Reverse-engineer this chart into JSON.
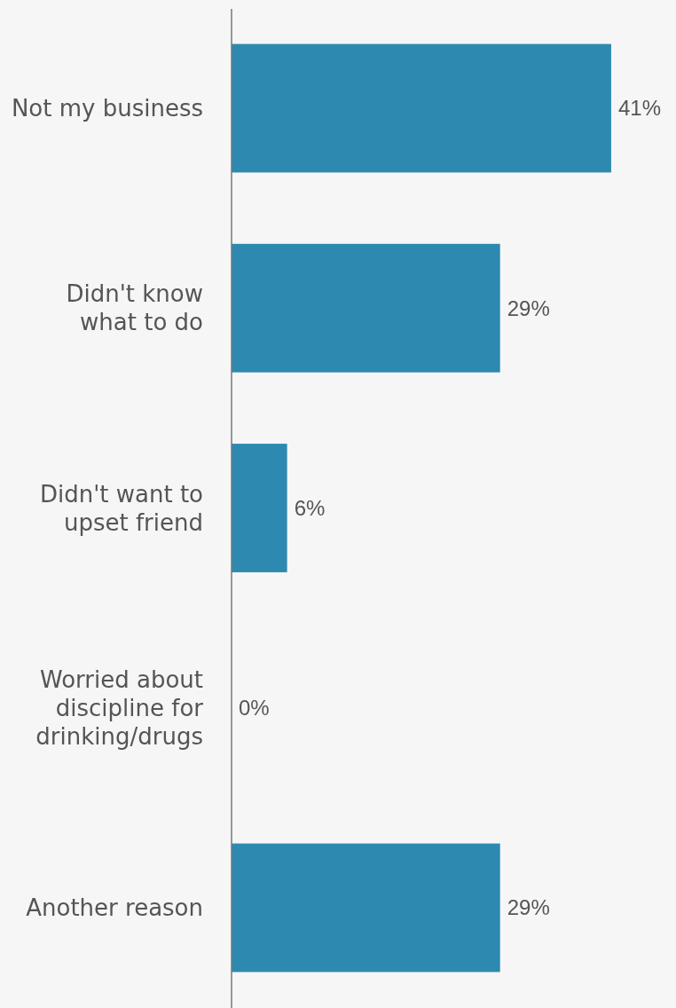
{
  "chart_data": {
    "type": "bar",
    "orientation": "horizontal",
    "categories": [
      "Not my business",
      "Didn't know\nwhat to do",
      "Didn't want to\nupset friend",
      "Worried about\ndiscipline for\ndrinking/drugs",
      "Another reason"
    ],
    "values": [
      41,
      29,
      6,
      0,
      29
    ],
    "value_labels": [
      "41%",
      "29%",
      "6%",
      "0%",
      "29%"
    ],
    "color": "#2e89b0",
    "xlim": [
      0,
      48
    ],
    "tick_labels": "y"
  }
}
